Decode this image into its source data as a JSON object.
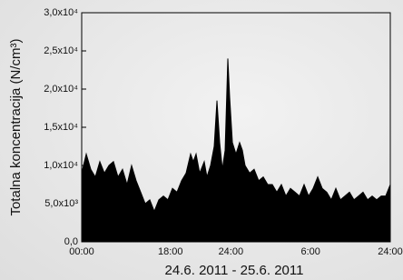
{
  "chart_data": {
    "type": "area",
    "xlabel": "24.6. 2011 - 25.6. 2011",
    "ylabel": "Totalna koncentracija (N/cm³)",
    "color": "#000000",
    "xlim": [
      0,
      48
    ],
    "ylim": [
      0,
      30000
    ],
    "xticks": [
      {
        "value": 0,
        "label": "00:00"
      },
      {
        "value": 13.8,
        "label": "18:00"
      },
      {
        "value": 23.2,
        "label": "24:00"
      },
      {
        "value": 35.6,
        "label": "6:00"
      },
      {
        "value": 48,
        "label": "24:00"
      }
    ],
    "yticks": [
      {
        "value": 0,
        "label": "0,0"
      },
      {
        "value": 5000,
        "label": "5,0x10³"
      },
      {
        "value": 10000,
        "label": "1,0x10⁴"
      },
      {
        "value": 15000,
        "label": "1,5x10⁴"
      },
      {
        "value": 20000,
        "label": "2,0x10⁴"
      },
      {
        "value": 25000,
        "label": "2,5x10⁴"
      },
      {
        "value": 30000,
        "label": "3,0x10⁴"
      }
    ],
    "x": [
      0,
      0.71,
      1.41,
      2.12,
      2.82,
      3.53,
      4.24,
      4.94,
      5.65,
      6.35,
      7.06,
      7.76,
      8.47,
      9.18,
      9.88,
      10.59,
      11.29,
      12,
      12.71,
      13.41,
      14.12,
      14.82,
      15.53,
      16.24,
      16.94,
      17.36,
      17.79,
      18.35,
      19.06,
      19.48,
      20.05,
      20.61,
      21.04,
      21.46,
      21.88,
      22.31,
      22.73,
      23.01,
      23.44,
      24,
      24.56,
      24.99,
      25.41,
      26.12,
      26.82,
      27.53,
      28.24,
      28.94,
      29.65,
      30.35,
      31.06,
      31.76,
      32.47,
      33.18,
      33.88,
      34.59,
      35.29,
      36,
      36.71,
      37.41,
      38.12,
      38.82,
      39.53,
      40.24,
      40.94,
      41.65,
      42.35,
      43.06,
      43.76,
      44.47,
      45.18,
      45.88,
      46.59,
      47.29,
      48
    ],
    "values": [
      9000,
      11500,
      9500,
      8500,
      10500,
      9000,
      10000,
      10500,
      8500,
      9500,
      7500,
      10000,
      8000,
      6500,
      5000,
      5500,
      4000,
      5500,
      6000,
      5500,
      7000,
      6500,
      8000,
      9000,
      11500,
      10500,
      11500,
      9000,
      10500,
      8500,
      10000,
      12500,
      18500,
      13000,
      9500,
      12000,
      24000,
      19000,
      13000,
      11500,
      13000,
      12000,
      10000,
      9000,
      9500,
      8000,
      8500,
      7500,
      7500,
      6500,
      7500,
      6000,
      7000,
      6500,
      6000,
      7500,
      6000,
      7000,
      8500,
      7000,
      6500,
      5500,
      7000,
      5500,
      6000,
      6500,
      5500,
      6000,
      6500,
      5500,
      6000,
      5500,
      6000,
      6000,
      7500
    ]
  }
}
